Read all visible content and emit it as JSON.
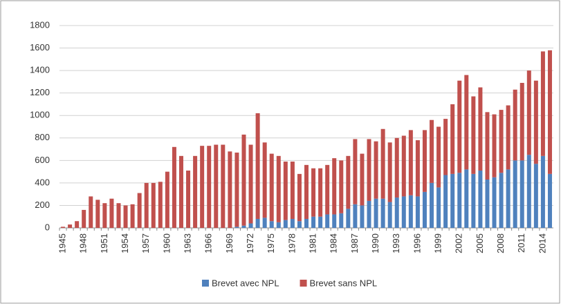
{
  "chart_data": {
    "type": "stacked_bar",
    "categories": [
      "1945",
      null,
      null,
      "1948",
      null,
      null,
      "1951",
      null,
      null,
      "1954",
      null,
      null,
      "1957",
      null,
      null,
      "1960",
      null,
      null,
      "1963",
      null,
      null,
      "1966",
      null,
      null,
      "1969",
      null,
      null,
      "1972",
      null,
      null,
      "1975",
      null,
      null,
      "1978",
      null,
      null,
      "1981",
      null,
      null,
      "1984",
      null,
      null,
      "1987",
      null,
      null,
      "1990",
      null,
      null,
      "1993",
      null,
      null,
      "1996",
      null,
      null,
      "1999",
      null,
      null,
      "2002",
      null,
      null,
      "2005",
      null,
      null,
      "2008",
      null,
      null,
      "2011",
      null,
      null,
      "2014",
      null
    ],
    "series": [
      {
        "name": "Brevet avec NPL",
        "color": "#4f81bd",
        "values": [
          0,
          0,
          0,
          0,
          0,
          0,
          0,
          0,
          0,
          0,
          0,
          0,
          0,
          0,
          0,
          0,
          0,
          0,
          0,
          0,
          0,
          0,
          0,
          0,
          0,
          10,
          20,
          40,
          80,
          90,
          60,
          50,
          70,
          80,
          60,
          80,
          100,
          100,
          120,
          120,
          130,
          170,
          210,
          200,
          240,
          260,
          260,
          230,
          270,
          280,
          290,
          280,
          320,
          400,
          360,
          470,
          480,
          490,
          520,
          480,
          510,
          430,
          450,
          490,
          520,
          600,
          600,
          650,
          570,
          640,
          480
        ]
      },
      {
        "name": "Brevet sans NPL",
        "color": "#c0504d",
        "values": [
          10,
          30,
          60,
          160,
          280,
          250,
          220,
          260,
          220,
          200,
          210,
          310,
          400,
          400,
          410,
          500,
          720,
          640,
          510,
          640,
          730,
          730,
          740,
          740,
          680,
          660,
          810,
          700,
          940,
          670,
          600,
          590,
          520,
          510,
          420,
          480,
          430,
          430,
          440,
          500,
          470,
          470,
          580,
          460,
          550,
          510,
          620,
          530,
          530,
          540,
          580,
          500,
          550,
          560,
          540,
          500,
          620,
          820,
          840,
          690,
          740,
          600,
          560,
          560,
          570,
          630,
          690,
          750,
          740,
          930,
          1100
        ]
      }
    ],
    "ylim": [
      0,
      1800
    ],
    "yticks": [
      0,
      200,
      400,
      600,
      800,
      1000,
      1200,
      1400,
      1600,
      1800
    ],
    "grid": true,
    "legend": "bottom"
  }
}
